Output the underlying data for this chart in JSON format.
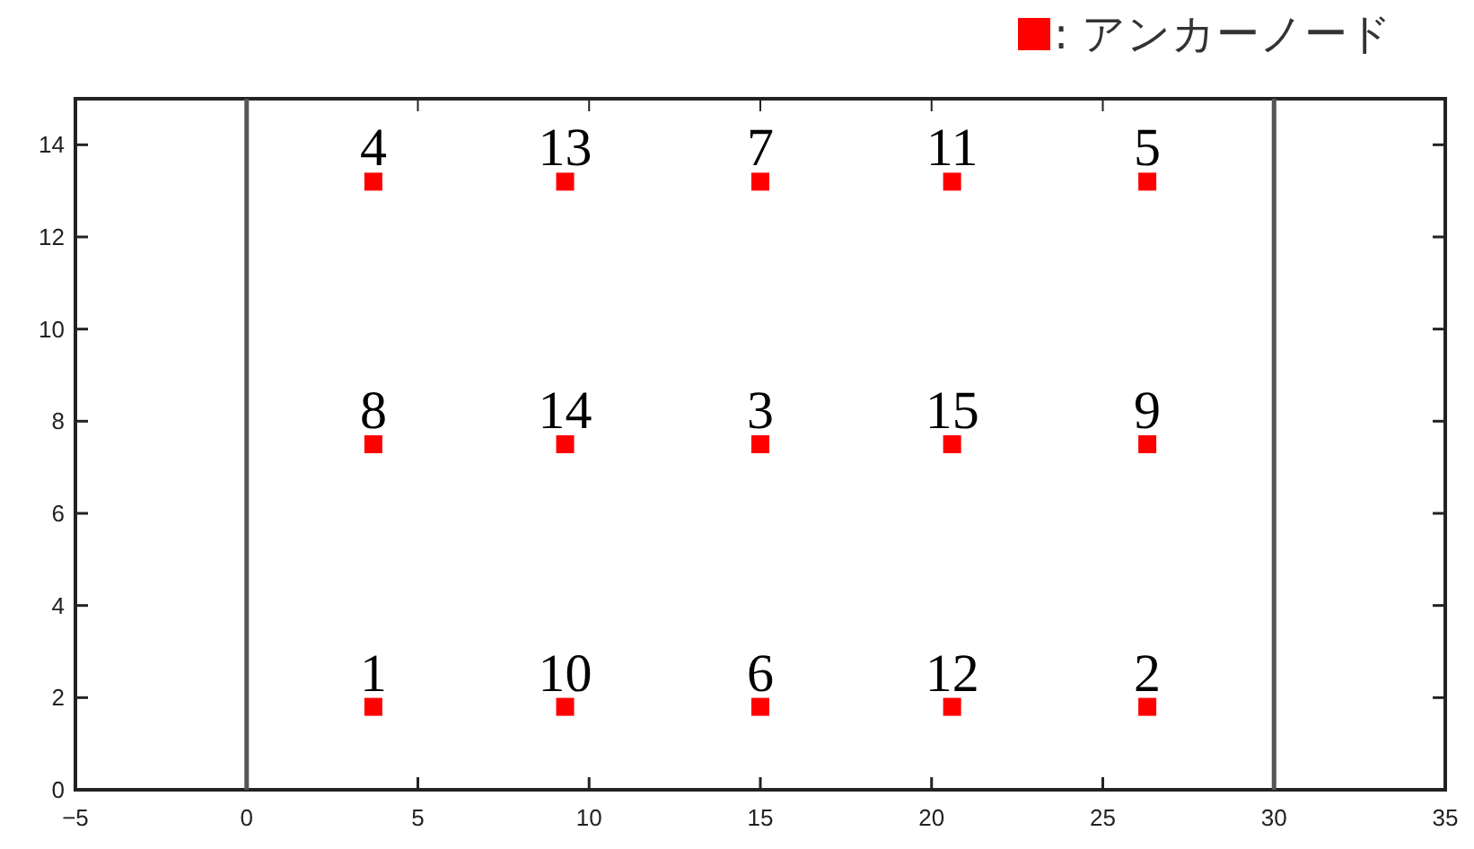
{
  "chart_data": {
    "type": "scatter",
    "xlim": [
      -5,
      35
    ],
    "ylim": [
      0,
      15
    ],
    "xticks": [
      {
        "value": -5,
        "label": "−5"
      },
      0,
      5,
      10,
      15,
      20,
      25,
      30,
      35
    ],
    "yticks": [
      0,
      2,
      4,
      6,
      8,
      10,
      12,
      14
    ],
    "legend": "top right",
    "ref_lines": [
      {
        "axis": "x",
        "value": 0,
        "color": "#555555"
      },
      {
        "axis": "x",
        "value": 30,
        "color": "#555555"
      }
    ],
    "annotations": [
      {
        "text": "1",
        "x": 3.7,
        "y": 1.8
      },
      {
        "text": "2",
        "x": 26.3,
        "y": 1.8
      },
      {
        "text": "3",
        "x": 15,
        "y": 7.5
      },
      {
        "text": "4",
        "x": 3.7,
        "y": 13.2
      },
      {
        "text": "5",
        "x": 26.3,
        "y": 13.2
      },
      {
        "text": "6",
        "x": 15,
        "y": 1.8
      },
      {
        "text": "7",
        "x": 15,
        "y": 13.2
      },
      {
        "text": "8",
        "x": 3.7,
        "y": 7.5
      },
      {
        "text": "9",
        "x": 26.3,
        "y": 7.5
      },
      {
        "text": "10",
        "x": 9.3,
        "y": 1.8
      },
      {
        "text": "11",
        "x": 20.6,
        "y": 13.2
      },
      {
        "text": "12",
        "x": 20.6,
        "y": 1.8
      },
      {
        "text": "13",
        "x": 9.3,
        "y": 13.2
      },
      {
        "text": "14",
        "x": 9.3,
        "y": 7.5
      },
      {
        "text": "15",
        "x": 20.6,
        "y": 7.5
      }
    ],
    "series": [
      {
        "name": ": アンカーノード",
        "color": "#ff0000",
        "marker": "square",
        "x": [
          3.7,
          26.3,
          15,
          3.7,
          26.3,
          15,
          15,
          3.7,
          26.3,
          9.3,
          20.6,
          20.6,
          9.3,
          9.3,
          20.6
        ],
        "values": [
          1.8,
          1.8,
          7.5,
          13.2,
          13.2,
          1.8,
          13.2,
          7.5,
          7.5,
          1.8,
          13.2,
          1.8,
          13.2,
          7.5,
          7.5
        ]
      }
    ]
  }
}
